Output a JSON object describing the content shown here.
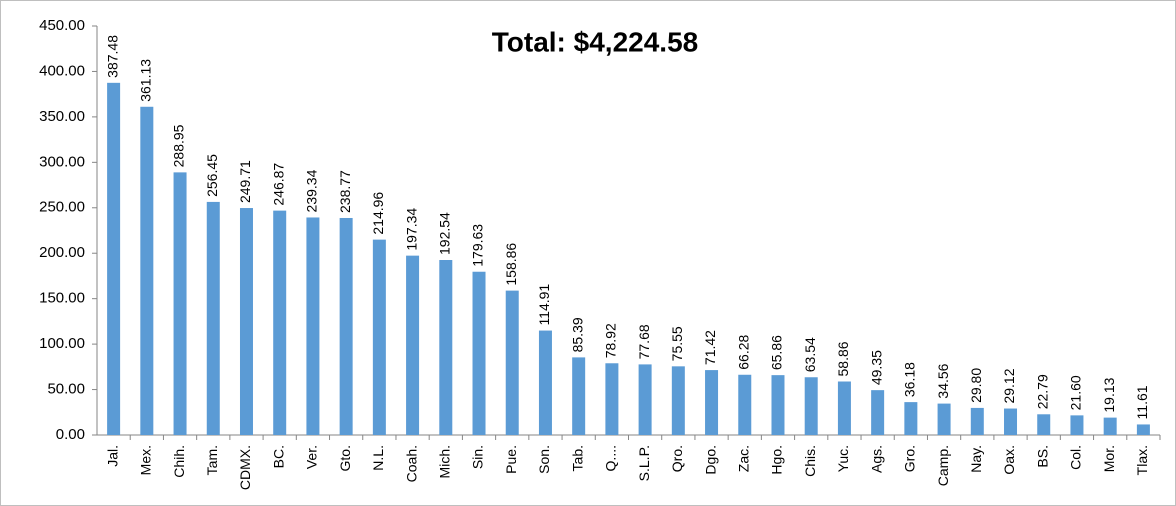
{
  "chart_data": {
    "type": "bar",
    "annotation": "Total: $4,224.58",
    "categories": [
      "Jal.",
      "Mex.",
      "Chih.",
      "Tam.",
      "CDMX.",
      "BC.",
      "Ver.",
      "Gto.",
      "N.L.",
      "Coah.",
      "Mich.",
      "Sin.",
      "Pue.",
      "Son.",
      "Tab.",
      "Q....",
      "S.L.P.",
      "Qro.",
      "Dgo.",
      "Zac.",
      "Hgo.",
      "Chis.",
      "Yuc.",
      "Ags.",
      "Gro.",
      "Camp.",
      "Nay.",
      "Oax.",
      "BS.",
      "Col.",
      "Mor.",
      "Tlax."
    ],
    "values": [
      387.48,
      361.13,
      288.95,
      256.45,
      249.71,
      246.87,
      239.34,
      238.77,
      214.96,
      197.34,
      192.54,
      179.63,
      158.86,
      114.91,
      85.39,
      78.92,
      77.68,
      75.55,
      71.42,
      66.28,
      65.86,
      63.54,
      58.86,
      49.35,
      36.18,
      34.56,
      29.8,
      29.12,
      22.79,
      21.6,
      19.13,
      11.61
    ],
    "value_labels": [
      "387.48",
      "361.13",
      "288.95",
      "256.45",
      "249.71",
      "246.87",
      "239.34",
      "238.77",
      "214.96",
      "197.34",
      "192.54",
      "179.63",
      "158.86",
      "114.91",
      "85.39",
      "78.92",
      "77.68",
      "75.55",
      "71.42",
      "66.28",
      "65.86",
      "63.54",
      "58.86",
      "49.35",
      "36.18",
      "34.56",
      "29.80",
      "29.12",
      "22.79",
      "21.60",
      "19.13",
      "11.61"
    ],
    "color": "#5b9bd5",
    "ylim": [
      0,
      450
    ],
    "yticks": [
      {
        "value": 0,
        "label": "0.00"
      },
      {
        "value": 50,
        "label": "50.00"
      },
      {
        "value": 100,
        "label": "100.00"
      },
      {
        "value": 150,
        "label": "150.00"
      },
      {
        "value": 200,
        "label": "200.00"
      },
      {
        "value": 250,
        "label": "250.00"
      },
      {
        "value": 300,
        "label": "300.00"
      },
      {
        "value": 350,
        "label": "350.00"
      },
      {
        "value": 400,
        "label": "400.00"
      },
      {
        "value": 450,
        "label": "450.00"
      }
    ],
    "grid": false
  }
}
